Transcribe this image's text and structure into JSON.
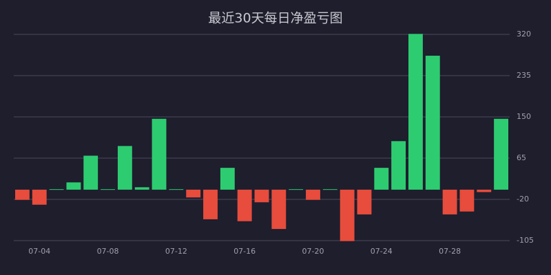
{
  "chart_data": {
    "type": "bar",
    "title": "最近30天每日净盈亏图",
    "categories": [
      null,
      "07-04",
      null,
      null,
      null,
      "07-08",
      null,
      null,
      null,
      "07-12",
      null,
      null,
      null,
      "07-16",
      null,
      null,
      null,
      "07-20",
      null,
      null,
      null,
      "07-24",
      null,
      null,
      null,
      "07-28",
      null,
      null,
      null
    ],
    "values": [
      -21,
      -31,
      1,
      15,
      70,
      1,
      90,
      5,
      146,
      1,
      -16,
      -61,
      45,
      -65,
      -26,
      -81,
      1,
      -21,
      1,
      -106,
      -51,
      45,
      100,
      321,
      276,
      -51,
      -45,
      -5,
      146
    ],
    "positive_color": "#2ecc71",
    "negative_color": "#e74c3c",
    "ylim": [
      -105,
      320
    ],
    "yticks": [
      320,
      235,
      150,
      65,
      -20,
      -105
    ],
    "grid": true
  }
}
